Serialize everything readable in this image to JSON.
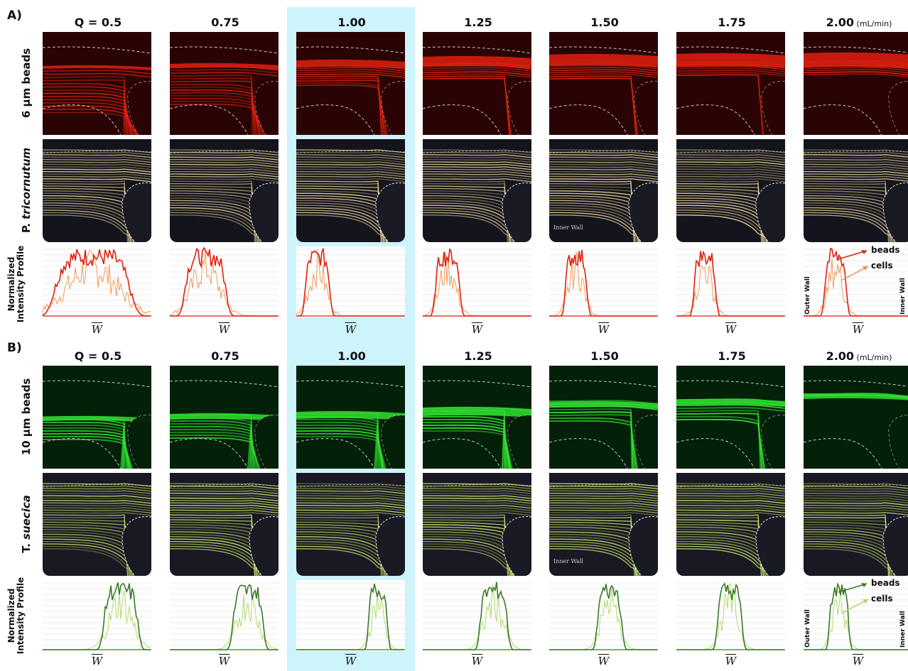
{
  "sectionA": {
    "label": "A)",
    "header_first": "Q = 0.5",
    "headers": [
      "Q = 0.5",
      "0.75",
      "1.00",
      "1.25",
      "1.50",
      "1.75",
      "2.00"
    ],
    "unit": "(mL/min)",
    "row1": "6 µm beads",
    "row2_a": "P.",
    "row2_b": "tricornutum",
    "row3_a": "Normalized",
    "row3_b": "Intensity Profile",
    "xlabel": "W",
    "legend_beads": "beads",
    "legend_cells": "cells",
    "outer_wall": "Outer Wall",
    "inner_wall": "Inner Wall",
    "colors": {
      "beads": "#e02010",
      "cells": "#f0904a"
    }
  },
  "sectionB": {
    "label": "B)",
    "headers": [
      "Q = 0.5",
      "0.75",
      "1.00",
      "1.25",
      "1.50",
      "1.75",
      "2.00"
    ],
    "unit": "(mL/min)",
    "row1": "10 µm beads",
    "row2_a": "T.",
    "row2_b": "suecica",
    "row3_a": "Normalized",
    "row3_b": "Intensity Profile",
    "xlabel": "W",
    "legend_beads": "beads",
    "legend_cells": "cells",
    "outer_wall": "Outer Wall",
    "inner_wall": "Inner Wall",
    "colors": {
      "beads": "#3a7a28",
      "cells": "#a8d860"
    }
  },
  "inner_wall_label": "Inner Wall"
}
